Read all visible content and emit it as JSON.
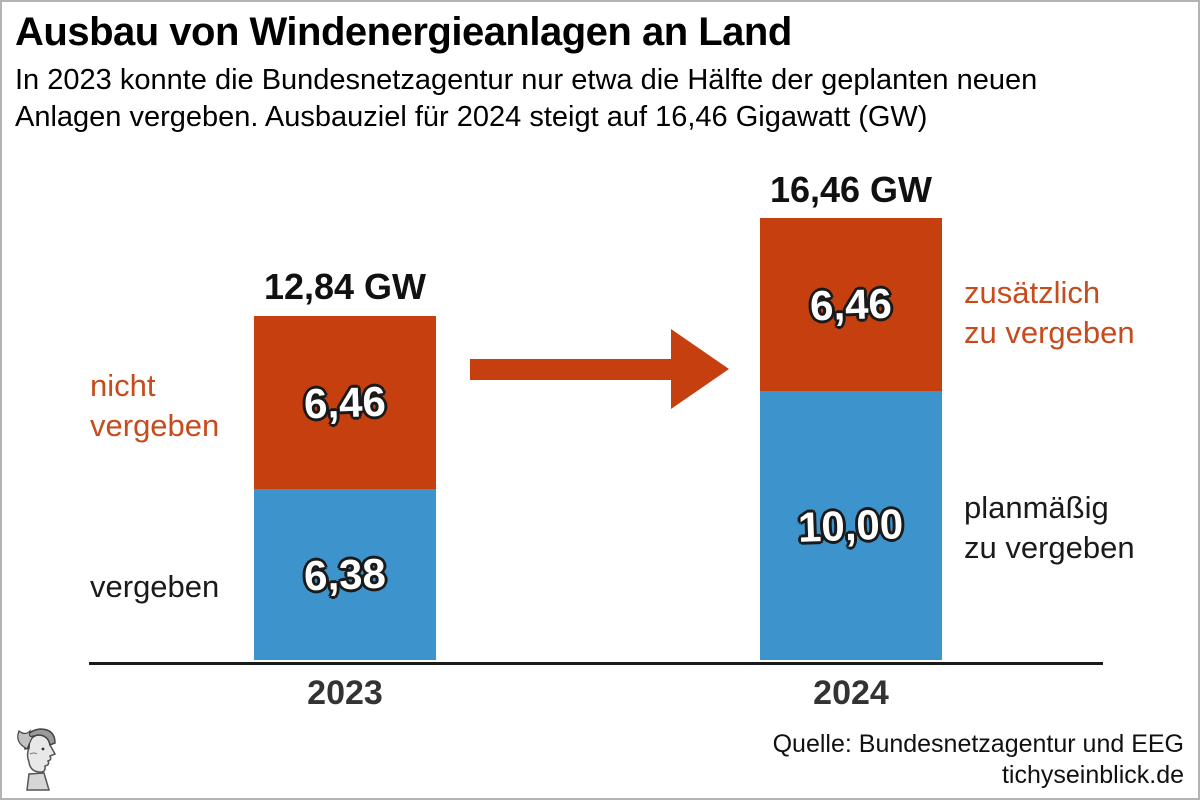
{
  "frame": {
    "border_color": "#b3b3b3"
  },
  "header": {
    "title": "Ausbau von Windenergieanlagen an Land",
    "subtitle_lines": [
      "In 2023 konnte die Bundesnetzagentur nur etwa die Hälfte der geplanten neuen",
      "Anlagen vergeben. Ausbauziel für 2024 steigt auf 16,46 Gigawatt (GW)"
    ]
  },
  "chart_data": {
    "type": "bar",
    "stacked": true,
    "unit": "GW",
    "title": "Ausbau von Windenergieanlagen an Land",
    "categories": [
      "2023",
      "2024"
    ],
    "series": [
      {
        "key": "vergeben",
        "name": "vergeben (2023) / planmäßig zu vergeben (2024)",
        "color": "#3d93cc",
        "values": [
          6.38,
          10.0
        ],
        "labels": [
          "6,38",
          "10,00"
        ]
      },
      {
        "key": "nicht-vergeben",
        "name": "nicht vergeben (2023) / zusätzlich zu vergeben (2024)",
        "color": "#c5400e",
        "values": [
          6.46,
          6.46
        ],
        "labels": [
          "6,46",
          "6,46"
        ]
      }
    ],
    "totals": [
      "12,84 GW",
      "16,46 GW"
    ],
    "ylim": [
      0,
      16.46
    ],
    "grid": false,
    "legend_position": "beside-bars"
  },
  "annotations": {
    "left_top": {
      "lines": [
        "nicht",
        "vergeben"
      ],
      "color": "#c64b1d"
    },
    "left_bottom": {
      "lines": [
        "vergeben"
      ],
      "color": "#1a1a1a"
    },
    "right_top": {
      "lines": [
        "zusätzlich",
        "zu vergeben"
      ],
      "color": "#c64b1d"
    },
    "right_bottom": {
      "lines": [
        "planmäßig",
        "zu vergeben"
      ],
      "color": "#1a1a1a"
    }
  },
  "footer": {
    "source_lines": [
      "Quelle: Bundesnetzagentur und EEG",
      "tichyseinblick.de"
    ],
    "logo": "hermes-head-logo"
  },
  "colors": {
    "bar_blue": "#3d93cc",
    "bar_red": "#c5400e",
    "accent_text": "#c64b1d",
    "axis": "#1a1a1a",
    "year_label": "#333333",
    "arrow": "#c5400e"
  }
}
